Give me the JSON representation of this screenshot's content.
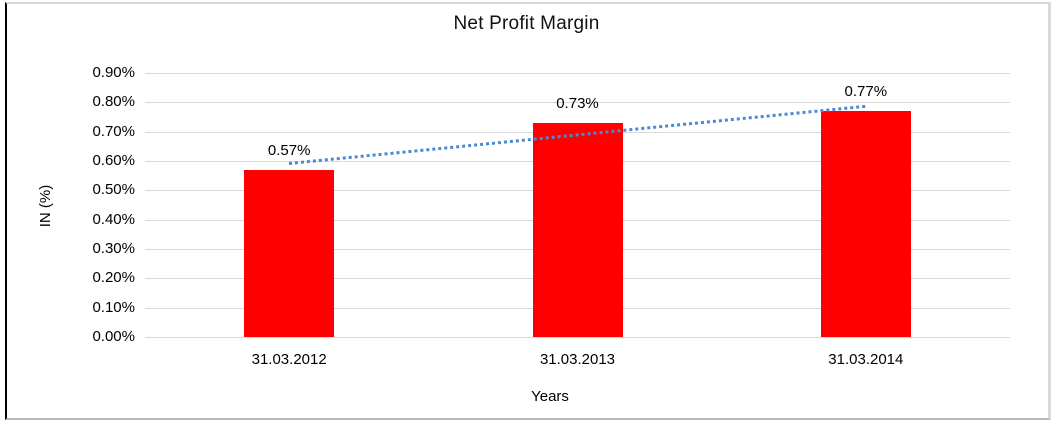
{
  "frame": {
    "background": "#ffffff",
    "outer_border_color": "#d9d9d9",
    "left_border_color": "#000000"
  },
  "chart_data": {
    "type": "bar",
    "title": "Net Profit Margin",
    "xlabel": "Years",
    "ylabel": "IN (%)",
    "categories": [
      "31.03.2012",
      "31.03.2013",
      "31.03.2014"
    ],
    "values": [
      0.57,
      0.73,
      0.77
    ],
    "data_labels": [
      "0.57%",
      "0.73%",
      "0.77%"
    ],
    "ytick_labels": [
      "0.90%",
      "0.80%",
      "0.70%",
      "0.60%",
      "0.50%",
      "0.40%",
      "0.30%",
      "0.20%",
      "0.10%",
      "0.00%"
    ],
    "ylim": [
      0,
      0.9
    ],
    "ytick_step": 0.1,
    "grid": true,
    "legend": "none",
    "bar_color": "#ff0000",
    "gridline_color": "#d9d9d9",
    "text_color": "#000000",
    "trendline": {
      "style": "dotted",
      "color": "#4a89d4",
      "start_value": 0.595,
      "end_value": 0.79
    }
  }
}
